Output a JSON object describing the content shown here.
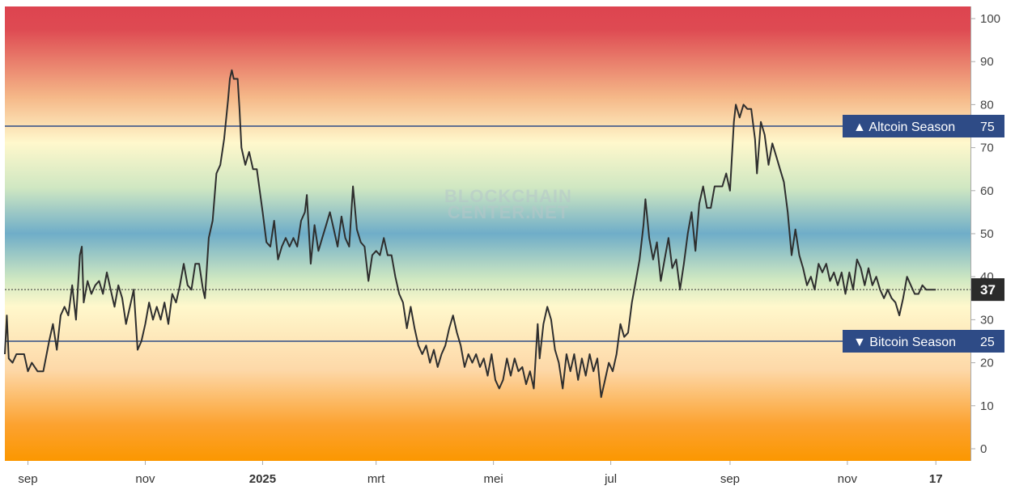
{
  "watermark": {
    "line1": "BLOCKCHAIN",
    "line2": "CENTER.NET"
  },
  "colors": {
    "line": "#2e2e2e",
    "reference_line": "#2e4b86",
    "tag_bg": "#2e4b86",
    "current_tag_bg": "#2b2b2b",
    "axis_text": "#444444",
    "gradient": [
      "#dd4450",
      "#f2a070",
      "#fff8cc",
      "#c8e2bb",
      "#72b0c8",
      "#cde7c0",
      "#fff8cc",
      "#fbd4a0",
      "#fb9a00"
    ]
  },
  "reference_lines": [
    {
      "value": 75,
      "label": "▲ Altcoin Season",
      "value_label": "75"
    },
    {
      "value": 25,
      "label": "▼ Bitcoin Season",
      "value_label": "25"
    }
  ],
  "current": {
    "value": 37,
    "label": "37"
  },
  "chart_data": {
    "type": "line",
    "title": "",
    "xlabel": "",
    "ylabel": "",
    "ylim": [
      0,
      100
    ],
    "y_ticks": [
      0,
      10,
      20,
      30,
      40,
      50,
      60,
      70,
      80,
      90,
      100
    ],
    "x_ticks": [
      {
        "label": "sep",
        "x": "2024-09-01",
        "bold": false
      },
      {
        "label": "nov",
        "x": "2024-11-01",
        "bold": false
      },
      {
        "label": "2025",
        "x": "2025-01-01",
        "bold": true
      },
      {
        "label": "mrt",
        "x": "2025-03-01",
        "bold": false
      },
      {
        "label": "mei",
        "x": "2025-05-01",
        "bold": false
      },
      {
        "label": "jul",
        "x": "2025-07-01",
        "bold": false
      },
      {
        "label": "sep",
        "x": "2025-09-01",
        "bold": false
      },
      {
        "label": "nov",
        "x": "2025-11-01",
        "bold": false
      },
      {
        "label": "17",
        "x": "2025-12-17",
        "bold": true
      }
    ],
    "xlim": [
      "2024-08-20",
      "2026-01-04"
    ],
    "series": [
      {
        "values": [
          [
            "2024-08-20",
            22
          ],
          [
            "2024-08-21",
            31
          ],
          [
            "2024-08-22",
            21
          ],
          [
            "2024-08-24",
            20
          ],
          [
            "2024-08-26",
            22
          ],
          [
            "2024-08-30",
            22
          ],
          [
            "2024-09-01",
            18
          ],
          [
            "2024-09-03",
            20
          ],
          [
            "2024-09-06",
            18
          ],
          [
            "2024-09-09",
            18
          ],
          [
            "2024-09-12",
            25
          ],
          [
            "2024-09-14",
            29
          ],
          [
            "2024-09-16",
            23
          ],
          [
            "2024-09-18",
            31
          ],
          [
            "2024-09-20",
            33
          ],
          [
            "2024-09-22",
            31
          ],
          [
            "2024-09-24",
            38
          ],
          [
            "2024-09-26",
            30
          ],
          [
            "2024-09-28",
            45
          ],
          [
            "2024-09-29",
            47
          ],
          [
            "2024-09-30",
            34
          ],
          [
            "2024-10-02",
            39
          ],
          [
            "2024-10-04",
            36
          ],
          [
            "2024-10-06",
            38
          ],
          [
            "2024-10-08",
            39
          ],
          [
            "2024-10-10",
            36
          ],
          [
            "2024-10-12",
            41
          ],
          [
            "2024-10-14",
            37
          ],
          [
            "2024-10-16",
            33
          ],
          [
            "2024-10-18",
            38
          ],
          [
            "2024-10-20",
            35
          ],
          [
            "2024-10-22",
            29
          ],
          [
            "2024-10-24",
            33
          ],
          [
            "2024-10-26",
            37
          ],
          [
            "2024-10-28",
            23
          ],
          [
            "2024-10-30",
            25
          ],
          [
            "2024-11-01",
            29
          ],
          [
            "2024-11-03",
            34
          ],
          [
            "2024-11-05",
            30
          ],
          [
            "2024-11-07",
            33
          ],
          [
            "2024-11-09",
            30
          ],
          [
            "2024-11-11",
            34
          ],
          [
            "2024-11-13",
            29
          ],
          [
            "2024-11-15",
            36
          ],
          [
            "2024-11-17",
            34
          ],
          [
            "2024-11-19",
            38
          ],
          [
            "2024-11-21",
            43
          ],
          [
            "2024-11-23",
            38
          ],
          [
            "2024-11-25",
            37
          ],
          [
            "2024-11-27",
            43
          ],
          [
            "2024-11-29",
            43
          ],
          [
            "2024-12-01",
            37
          ],
          [
            "2024-12-02",
            35
          ],
          [
            "2024-12-04",
            49
          ],
          [
            "2024-12-06",
            53
          ],
          [
            "2024-12-08",
            64
          ],
          [
            "2024-12-10",
            66
          ],
          [
            "2024-12-12",
            72
          ],
          [
            "2024-12-14",
            81
          ],
          [
            "2024-12-15",
            86
          ],
          [
            "2024-12-16",
            88
          ],
          [
            "2024-12-17",
            86
          ],
          [
            "2024-12-19",
            86
          ],
          [
            "2024-12-20",
            79
          ],
          [
            "2024-12-21",
            70
          ],
          [
            "2024-12-23",
            66
          ],
          [
            "2024-12-25",
            69
          ],
          [
            "2024-12-27",
            65
          ],
          [
            "2024-12-29",
            65
          ],
          [
            "2025-01-01",
            55
          ],
          [
            "2025-01-03",
            48
          ],
          [
            "2025-01-05",
            47
          ],
          [
            "2025-01-07",
            53
          ],
          [
            "2025-01-09",
            44
          ],
          [
            "2025-01-11",
            47
          ],
          [
            "2025-01-13",
            49
          ],
          [
            "2025-01-15",
            47
          ],
          [
            "2025-01-17",
            49
          ],
          [
            "2025-01-19",
            47
          ],
          [
            "2025-01-21",
            53
          ],
          [
            "2025-01-23",
            55
          ],
          [
            "2025-01-24",
            59
          ],
          [
            "2025-01-26",
            43
          ],
          [
            "2025-01-28",
            52
          ],
          [
            "2025-01-30",
            46
          ],
          [
            "2025-02-01",
            49
          ],
          [
            "2025-02-03",
            52
          ],
          [
            "2025-02-05",
            55
          ],
          [
            "2025-02-07",
            51
          ],
          [
            "2025-02-09",
            47
          ],
          [
            "2025-02-11",
            54
          ],
          [
            "2025-02-13",
            49
          ],
          [
            "2025-02-15",
            47
          ],
          [
            "2025-02-17",
            61
          ],
          [
            "2025-02-19",
            51
          ],
          [
            "2025-02-21",
            48
          ],
          [
            "2025-02-23",
            47
          ],
          [
            "2025-02-25",
            39
          ],
          [
            "2025-02-27",
            45
          ],
          [
            "2025-03-01",
            46
          ],
          [
            "2025-03-03",
            45
          ],
          [
            "2025-03-05",
            49
          ],
          [
            "2025-03-07",
            45
          ],
          [
            "2025-03-09",
            45
          ],
          [
            "2025-03-11",
            40
          ],
          [
            "2025-03-13",
            36
          ],
          [
            "2025-03-15",
            34
          ],
          [
            "2025-03-17",
            28
          ],
          [
            "2025-03-19",
            33
          ],
          [
            "2025-03-21",
            28
          ],
          [
            "2025-03-23",
            24
          ],
          [
            "2025-03-25",
            22
          ],
          [
            "2025-03-27",
            24
          ],
          [
            "2025-03-29",
            20
          ],
          [
            "2025-03-31",
            23
          ],
          [
            "2025-04-02",
            19
          ],
          [
            "2025-04-04",
            22
          ],
          [
            "2025-04-06",
            24
          ],
          [
            "2025-04-08",
            28
          ],
          [
            "2025-04-10",
            31
          ],
          [
            "2025-04-12",
            27
          ],
          [
            "2025-04-14",
            24
          ],
          [
            "2025-04-16",
            19
          ],
          [
            "2025-04-18",
            22
          ],
          [
            "2025-04-20",
            20
          ],
          [
            "2025-04-22",
            22
          ],
          [
            "2025-04-24",
            19
          ],
          [
            "2025-04-26",
            21
          ],
          [
            "2025-04-28",
            17
          ],
          [
            "2025-04-30",
            22
          ],
          [
            "2025-05-02",
            16
          ],
          [
            "2025-05-04",
            14
          ],
          [
            "2025-05-06",
            16
          ],
          [
            "2025-05-08",
            21
          ],
          [
            "2025-05-10",
            17
          ],
          [
            "2025-05-12",
            21
          ],
          [
            "2025-05-14",
            18
          ],
          [
            "2025-05-16",
            19
          ],
          [
            "2025-05-18",
            15
          ],
          [
            "2025-05-20",
            18
          ],
          [
            "2025-05-22",
            14
          ],
          [
            "2025-05-24",
            29
          ],
          [
            "2025-05-25",
            21
          ],
          [
            "2025-05-27",
            29
          ],
          [
            "2025-05-29",
            33
          ],
          [
            "2025-05-31",
            30
          ],
          [
            "2025-06-02",
            23
          ],
          [
            "2025-06-04",
            20
          ],
          [
            "2025-06-06",
            14
          ],
          [
            "2025-06-08",
            22
          ],
          [
            "2025-06-10",
            18
          ],
          [
            "2025-06-12",
            22
          ],
          [
            "2025-06-14",
            16
          ],
          [
            "2025-06-16",
            21
          ],
          [
            "2025-06-18",
            17
          ],
          [
            "2025-06-20",
            22
          ],
          [
            "2025-06-22",
            18
          ],
          [
            "2025-06-24",
            21
          ],
          [
            "2025-06-26",
            12
          ],
          [
            "2025-06-28",
            16
          ],
          [
            "2025-06-30",
            20
          ],
          [
            "2025-07-02",
            18
          ],
          [
            "2025-07-04",
            22
          ],
          [
            "2025-07-06",
            29
          ],
          [
            "2025-07-08",
            26
          ],
          [
            "2025-07-10",
            27
          ],
          [
            "2025-07-12",
            34
          ],
          [
            "2025-07-14",
            39
          ],
          [
            "2025-07-16",
            44
          ],
          [
            "2025-07-18",
            52
          ],
          [
            "2025-07-19",
            58
          ],
          [
            "2025-07-21",
            49
          ],
          [
            "2025-07-23",
            44
          ],
          [
            "2025-07-25",
            48
          ],
          [
            "2025-07-27",
            39
          ],
          [
            "2025-07-29",
            44
          ],
          [
            "2025-07-31",
            49
          ],
          [
            "2025-08-02",
            42
          ],
          [
            "2025-08-04",
            44
          ],
          [
            "2025-08-06",
            37
          ],
          [
            "2025-08-08",
            43
          ],
          [
            "2025-08-10",
            50
          ],
          [
            "2025-08-12",
            55
          ],
          [
            "2025-08-14",
            46
          ],
          [
            "2025-08-16",
            57
          ],
          [
            "2025-08-18",
            61
          ],
          [
            "2025-08-20",
            56
          ],
          [
            "2025-08-22",
            56
          ],
          [
            "2025-08-24",
            61
          ],
          [
            "2025-08-26",
            61
          ],
          [
            "2025-08-28",
            61
          ],
          [
            "2025-08-30",
            64
          ],
          [
            "2025-09-01",
            60
          ],
          [
            "2025-09-03",
            76
          ],
          [
            "2025-09-04",
            80
          ],
          [
            "2025-09-06",
            77
          ],
          [
            "2025-09-08",
            80
          ],
          [
            "2025-09-10",
            79
          ],
          [
            "2025-09-12",
            79
          ],
          [
            "2025-09-14",
            72
          ],
          [
            "2025-09-15",
            64
          ],
          [
            "2025-09-17",
            76
          ],
          [
            "2025-09-19",
            73
          ],
          [
            "2025-09-21",
            66
          ],
          [
            "2025-09-23",
            71
          ],
          [
            "2025-09-25",
            68
          ],
          [
            "2025-09-27",
            65
          ],
          [
            "2025-09-29",
            62
          ],
          [
            "2025-10-01",
            55
          ],
          [
            "2025-10-03",
            45
          ],
          [
            "2025-10-05",
            51
          ],
          [
            "2025-10-07",
            45
          ],
          [
            "2025-10-09",
            42
          ],
          [
            "2025-10-11",
            38
          ],
          [
            "2025-10-13",
            40
          ],
          [
            "2025-10-15",
            37
          ],
          [
            "2025-10-17",
            43
          ],
          [
            "2025-10-19",
            41
          ],
          [
            "2025-10-21",
            43
          ],
          [
            "2025-10-23",
            39
          ],
          [
            "2025-10-25",
            41
          ],
          [
            "2025-10-27",
            38
          ],
          [
            "2025-10-29",
            41
          ],
          [
            "2025-10-31",
            36
          ],
          [
            "2025-11-02",
            41
          ],
          [
            "2025-11-04",
            37
          ],
          [
            "2025-11-06",
            44
          ],
          [
            "2025-11-08",
            42
          ],
          [
            "2025-11-10",
            38
          ],
          [
            "2025-11-12",
            42
          ],
          [
            "2025-11-14",
            38
          ],
          [
            "2025-11-16",
            40
          ],
          [
            "2025-11-18",
            37
          ],
          [
            "2025-11-20",
            35
          ],
          [
            "2025-11-22",
            37
          ],
          [
            "2025-11-24",
            35
          ],
          [
            "2025-11-26",
            34
          ],
          [
            "2025-11-28",
            31
          ],
          [
            "2025-11-30",
            35
          ],
          [
            "2025-12-02",
            40
          ],
          [
            "2025-12-04",
            38
          ],
          [
            "2025-12-06",
            36
          ],
          [
            "2025-12-08",
            36
          ],
          [
            "2025-12-10",
            38
          ],
          [
            "2025-12-12",
            37
          ],
          [
            "2025-12-14",
            37
          ],
          [
            "2025-12-17",
            37
          ]
        ]
      }
    ]
  }
}
